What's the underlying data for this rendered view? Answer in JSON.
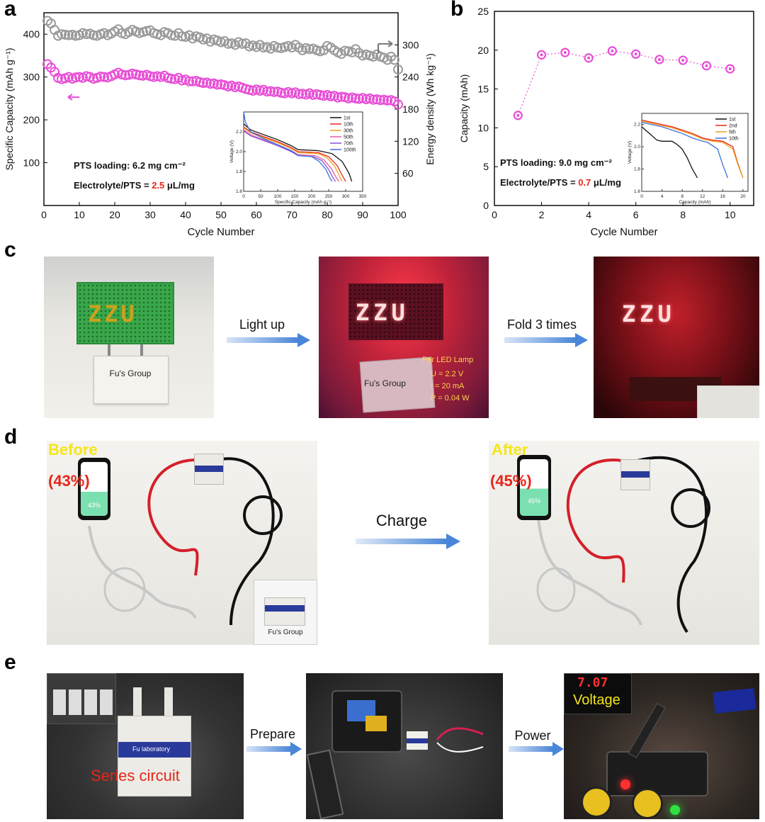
{
  "panels": {
    "a": {
      "label": "a"
    },
    "b": {
      "label": "b"
    },
    "c": {
      "label": "c",
      "step1": "Light up",
      "step2": "Fold 3 times",
      "photo1_text": "Fu's Group",
      "photo2_text": "Fu's Group",
      "led_title": "Per LED Lamp",
      "led_u": "U = 2.2 V",
      "led_i": "I = 20 mA",
      "led_p": "P = 0.04 W",
      "led_letters": "ZZU"
    },
    "d": {
      "label": "d",
      "before": "Before",
      "before_pct": "(43%)",
      "phone_before": "43%",
      "after": "After",
      "after_pct": "(45%)",
      "phone_after": "45%",
      "arrow": "Charge",
      "inset_text": "Fu's Group"
    },
    "e": {
      "label": "e",
      "step1": "Prepare",
      "step2": "Power",
      "series": "Series circuit",
      "voltage": "Voltage",
      "display": "7.07",
      "lab": "Fu laboratory"
    }
  },
  "colors": {
    "gray_series": "#9a9a9a",
    "pink_series": "#e84fd6",
    "red_highlight": "#e8251a",
    "arrow_blue": "#4a86d8"
  },
  "chart_data": [
    {
      "type": "scatter",
      "panel": "a",
      "xlabel": "Cycle Number",
      "ylabel": "Specific Capacity (mAh g⁻¹)",
      "y2label": "Energy density (Wh kg⁻¹)",
      "xlim": [
        0,
        100
      ],
      "ylim": [
        0,
        450
      ],
      "y2lim": [
        0,
        360
      ],
      "xticks": [
        0,
        10,
        20,
        30,
        40,
        50,
        60,
        70,
        80,
        90,
        100
      ],
      "yticks": [
        100,
        200,
        300,
        400
      ],
      "y2ticks": [
        60,
        120,
        180,
        240,
        300
      ],
      "annotation1": "PTS loading: 6.2 mg cm⁻²",
      "annotation2_pre": "Electrolyte/PTS = ",
      "annotation2_val": "2.5",
      "annotation2_post": " μL/mg",
      "series": [
        {
          "axis": "right",
          "color": "#9a9a9a",
          "x": [
            1,
            2,
            3,
            4,
            5,
            6,
            7,
            8,
            9,
            10,
            11,
            12,
            13,
            14,
            15,
            16,
            17,
            18,
            19,
            20,
            21,
            22,
            23,
            24,
            25,
            26,
            27,
            28,
            29,
            30,
            31,
            32,
            33,
            34,
            35,
            36,
            37,
            38,
            39,
            40,
            41,
            42,
            43,
            44,
            45,
            46,
            47,
            48,
            49,
            50,
            51,
            52,
            53,
            54,
            55,
            56,
            57,
            58,
            59,
            60,
            61,
            62,
            63,
            64,
            65,
            66,
            67,
            68,
            69,
            70,
            71,
            72,
            73,
            74,
            75,
            76,
            77,
            78,
            79,
            80,
            81,
            82,
            83,
            84,
            85,
            86,
            87,
            88,
            89,
            90,
            91,
            92,
            93,
            94,
            95,
            96,
            97,
            98,
            99,
            100
          ],
          "values": [
            345,
            340,
            328,
            317,
            320,
            319,
            318,
            319,
            317,
            318,
            322,
            320,
            321,
            318,
            317,
            320,
            322,
            318,
            321,
            325,
            329,
            322,
            320,
            324,
            328,
            325,
            322,
            324,
            326,
            327,
            322,
            320,
            318,
            324,
            322,
            318,
            317,
            322,
            316,
            315,
            318,
            312,
            316,
            314,
            310,
            312,
            306,
            310,
            308,
            305,
            307,
            302,
            303,
            300,
            305,
            302,
            303,
            297,
            299,
            296,
            300,
            295,
            296,
            293,
            298,
            295,
            294,
            296,
            298,
            295,
            300,
            295,
            290,
            294,
            292,
            293,
            290,
            288,
            290,
            298,
            295,
            290,
            286,
            283,
            289,
            288,
            286,
            292,
            285,
            280,
            282,
            280,
            278,
            282,
            278,
            276,
            272,
            278,
            272,
            254
          ]
        },
        {
          "axis": "left",
          "color": "#e84fd6",
          "x": [
            1,
            2,
            3,
            4,
            5,
            6,
            7,
            8,
            9,
            10,
            11,
            12,
            13,
            14,
            15,
            16,
            17,
            18,
            19,
            20,
            21,
            22,
            23,
            24,
            25,
            26,
            27,
            28,
            29,
            30,
            31,
            32,
            33,
            34,
            35,
            36,
            37,
            38,
            39,
            40,
            41,
            42,
            43,
            44,
            45,
            46,
            47,
            48,
            49,
            50,
            51,
            52,
            53,
            54,
            55,
            56,
            57,
            58,
            59,
            60,
            61,
            62,
            63,
            64,
            65,
            66,
            67,
            68,
            69,
            70,
            71,
            72,
            73,
            74,
            75,
            76,
            77,
            78,
            79,
            80,
            81,
            82,
            83,
            84,
            85,
            86,
            87,
            88,
            89,
            90,
            91,
            92,
            93,
            94,
            95,
            96,
            97,
            98,
            99,
            100
          ],
          "values": [
            330,
            322,
            312,
            298,
            295,
            297,
            300,
            296,
            299,
            300,
            298,
            302,
            300,
            296,
            298,
            301,
            300,
            299,
            302,
            306,
            310,
            306,
            304,
            305,
            308,
            306,
            304,
            303,
            305,
            302,
            300,
            302,
            300,
            303,
            298,
            296,
            295,
            298,
            292,
            294,
            290,
            290,
            291,
            288,
            286,
            287,
            284,
            285,
            282,
            283,
            281,
            278,
            280,
            276,
            278,
            275,
            272,
            270,
            268,
            271,
            268,
            270,
            266,
            267,
            265,
            266,
            263,
            262,
            265,
            262,
            264,
            260,
            261,
            259,
            262,
            258,
            260,
            258,
            256,
            258,
            255,
            256,
            252,
            254,
            253,
            250,
            252,
            250,
            249,
            251,
            248,
            250,
            247,
            248,
            246,
            247,
            245,
            246,
            243,
            236
          ]
        }
      ],
      "inset": {
        "type": "line",
        "xlabel": "Specific Capacity (mAh g⁻¹)",
        "ylabel": "Voltage (V)",
        "xlim": [
          0,
          350
        ],
        "ylim": [
          1.6,
          2.4
        ],
        "xticks": [
          0,
          50,
          100,
          150,
          200,
          250,
          300,
          350
        ],
        "yticks": [
          1.6,
          1.8,
          2.0,
          2.2
        ],
        "series": [
          {
            "name": "1st",
            "color": "#111111",
            "x": [
              0,
              20,
              60,
              100,
              140,
              160,
              220,
              260,
              290,
              310,
              318
            ],
            "y": [
              2.28,
              2.22,
              2.17,
              2.12,
              2.06,
              2.02,
              2.01,
              1.98,
              1.9,
              1.78,
              1.7
            ]
          },
          {
            "name": "10th",
            "color": "#e8251a",
            "x": [
              0,
              20,
              60,
              100,
              140,
              160,
              220,
              250,
              275,
              290,
              300
            ],
            "y": [
              2.25,
              2.2,
              2.15,
              2.1,
              2.04,
              2.0,
              1.99,
              1.95,
              1.86,
              1.76,
              1.7
            ]
          },
          {
            "name": "30th",
            "color": "#f0a020",
            "x": [
              0,
              20,
              60,
              100,
              140,
              160,
              220,
              245,
              268,
              282,
              290
            ],
            "y": [
              2.24,
              2.19,
              2.14,
              2.09,
              2.03,
              1.99,
              1.98,
              1.94,
              1.85,
              1.75,
              1.7
            ]
          },
          {
            "name": "50th",
            "color": "#e060a0",
            "x": [
              0,
              20,
              60,
              100,
              140,
              160,
              210,
              235,
              258,
              272,
              280
            ],
            "y": [
              2.22,
              2.17,
              2.12,
              2.07,
              2.01,
              1.97,
              1.96,
              1.92,
              1.83,
              1.74,
              1.7
            ]
          },
          {
            "name": "70th",
            "color": "#8a4fd6",
            "x": [
              0,
              20,
              60,
              100,
              140,
              160,
              205,
              230,
              250,
              262,
              270
            ],
            "y": [
              2.21,
              2.16,
              2.11,
              2.06,
              2.0,
              1.96,
              1.95,
              1.91,
              1.82,
              1.74,
              1.7
            ]
          },
          {
            "name": "100th",
            "color": "#3a6fe0",
            "x": [
              0,
              5,
              20,
              60,
              100,
              140,
              160,
              200,
              222,
              242,
              253,
              260
            ],
            "y": [
              2.4,
              2.3,
              2.2,
              2.13,
              2.07,
              2.01,
              1.96,
              1.95,
              1.9,
              1.82,
              1.74,
              1.7
            ]
          }
        ]
      }
    },
    {
      "type": "scatter",
      "panel": "b",
      "xlabel": "Cycle Number",
      "ylabel": "Capacity (mAh)",
      "xlim": [
        0,
        11
      ],
      "ylim": [
        0,
        25
      ],
      "xticks": [
        0,
        2,
        4,
        6,
        8,
        10
      ],
      "yticks": [
        0,
        5,
        10,
        15,
        20,
        25
      ],
      "annotation1": "PTS loading: 9.0 mg cm⁻²",
      "annotation2_pre": "Electrolyte/PTS = ",
      "annotation2_val": "0.7",
      "annotation2_post": " μL/mg",
      "series": [
        {
          "color": "#e84fd6",
          "x": [
            1,
            2,
            3,
            4,
            5,
            6,
            7,
            8,
            9,
            10
          ],
          "values": [
            11.6,
            19.4,
            19.7,
            19.0,
            19.9,
            19.5,
            18.8,
            18.7,
            18.0,
            17.6
          ]
        }
      ],
      "inset": {
        "type": "line",
        "xlabel": "Capacity (mAh)",
        "ylabel": "Voltage (V)",
        "xlim": [
          0,
          21
        ],
        "ylim": [
          1.6,
          2.3
        ],
        "xticks": [
          0,
          4,
          8,
          12,
          16,
          20
        ],
        "yticks": [
          1.6,
          1.8,
          2.0,
          2.2
        ],
        "series": [
          {
            "name": "1st",
            "color": "#111111",
            "x": [
              0,
              1,
              2,
              3,
              4,
              6,
              7,
              8,
              9,
              10,
              11
            ],
            "y": [
              2.18,
              2.14,
              2.1,
              2.06,
              2.05,
              2.05,
              2.02,
              1.98,
              1.9,
              1.8,
              1.72
            ]
          },
          {
            "name": "2nd",
            "color": "#e8251a",
            "x": [
              0,
              2,
              4,
              6,
              8,
              10,
              12,
              14,
              16,
              18,
              19,
              20
            ],
            "y": [
              2.24,
              2.22,
              2.2,
              2.18,
              2.15,
              2.12,
              2.08,
              2.06,
              2.05,
              2.0,
              1.85,
              1.72
            ]
          },
          {
            "name": "5th",
            "color": "#f0a020",
            "x": [
              0,
              2,
              4,
              6,
              8,
              10,
              12,
              14,
              16,
              18,
              19,
              20
            ],
            "y": [
              2.23,
              2.21,
              2.19,
              2.17,
              2.14,
              2.11,
              2.07,
              2.05,
              2.04,
              1.98,
              1.84,
              1.72
            ]
          },
          {
            "name": "10th",
            "color": "#3a6fe0",
            "x": [
              0,
              2,
              4,
              6,
              8,
              10,
              12,
              13,
              15,
              16,
              17
            ],
            "y": [
              2.22,
              2.2,
              2.18,
              2.15,
              2.12,
              2.08,
              2.05,
              2.04,
              1.98,
              1.84,
              1.72
            ]
          }
        ]
      }
    }
  ]
}
